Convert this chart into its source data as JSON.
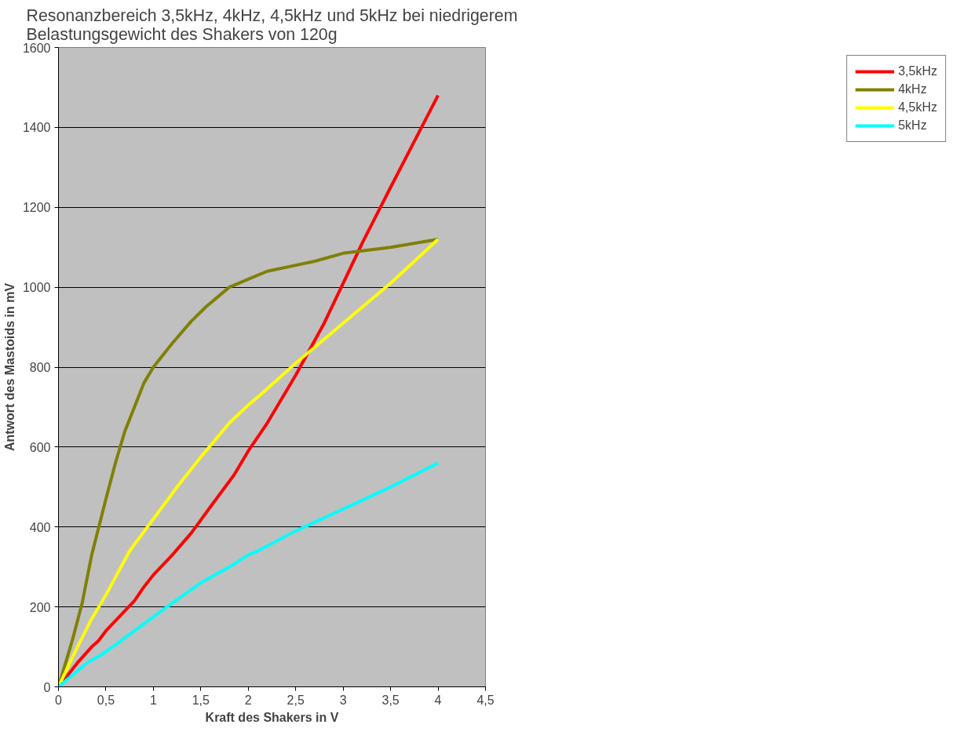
{
  "chart_data": {
    "type": "line",
    "title": "Resonanzbereich 3,5kHz, 4kHz, 4,5kHz und 5kHz bei niedrigerem\nBelastungsgewicht des Shakers von 120g",
    "xlabel": "Kraft des Shakers in V",
    "ylabel": "Antwort des Mastoids in mV",
    "xlim": [
      0,
      4.5
    ],
    "ylim": [
      0,
      1600
    ],
    "xticks": [
      0,
      {
        "value": 0.5,
        "label": "0,5"
      },
      1,
      {
        "value": 1.5,
        "label": "1,5"
      },
      2,
      {
        "value": 2.5,
        "label": "2,5"
      },
      3,
      {
        "value": 3.5,
        "label": "3,5"
      },
      4,
      {
        "value": 4.5,
        "label": "4,5"
      }
    ],
    "yticks": [
      0,
      200,
      400,
      600,
      800,
      1000,
      1200,
      1400,
      1600
    ],
    "grid": "y",
    "legend": "right",
    "marker": "none",
    "line_style": "solid",
    "series": [
      {
        "name": "3,5kHz",
        "color": "#ff0000",
        "x": [
          0,
          0.1,
          0.2,
          0.35,
          0.42,
          0.5,
          0.7,
          0.8,
          0.9,
          1,
          1.2,
          1.4,
          1.6,
          1.85,
          2,
          2.2,
          2.5,
          2.8,
          3,
          3.2,
          3.5,
          4
        ],
        "values": [
          0,
          30,
          60,
          100,
          115,
          140,
          190,
          215,
          250,
          280,
          330,
          385,
          450,
          530,
          590,
          660,
          780,
          910,
          1010,
          1110,
          1250,
          1480
        ]
      },
      {
        "name": "4kHz",
        "color": "#808000",
        "x": [
          0,
          0.15,
          0.25,
          0.3,
          0.35,
          0.5,
          0.6,
          0.7,
          0.8,
          0.9,
          1,
          1.2,
          1.4,
          1.55,
          1.8,
          2,
          2.2,
          2.5,
          2.7,
          3,
          3.5,
          4
        ],
        "values": [
          0,
          120,
          210,
          270,
          330,
          470,
          560,
          640,
          700,
          760,
          800,
          860,
          915,
          950,
          1000,
          1020,
          1040,
          1055,
          1065,
          1085,
          1100,
          1120
        ]
      },
      {
        "name": "4,5kHz",
        "color": "#ffff00",
        "x": [
          0,
          0.2,
          0.35,
          0.5,
          0.75,
          1,
          1.25,
          1.5,
          1.8,
          2,
          2.1,
          2.5,
          3,
          3.5,
          4
        ],
        "values": [
          0,
          100,
          170,
          230,
          340,
          420,
          500,
          575,
          660,
          705,
          725,
          810,
          910,
          1010,
          1120
        ]
      },
      {
        "name": "5kHz",
        "color": "#00ffff",
        "x": [
          0,
          0.15,
          0.3,
          0.45,
          0.6,
          0.8,
          1,
          1.2,
          1.5,
          1.8,
          2,
          2.1,
          2.5,
          3,
          3.5,
          4
        ],
        "values": [
          0,
          30,
          60,
          80,
          105,
          140,
          175,
          210,
          260,
          300,
          330,
          340,
          390,
          445,
          500,
          560
        ]
      }
    ]
  }
}
